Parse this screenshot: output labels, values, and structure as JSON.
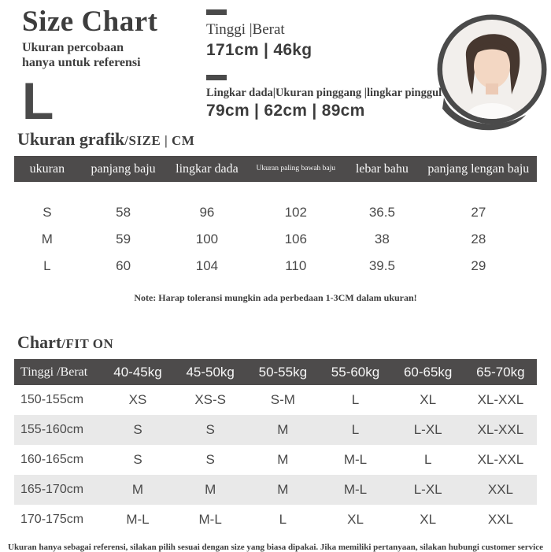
{
  "header": {
    "title": "Size Chart",
    "subtitle_line1": "Ukuran percobaan",
    "subtitle_line2": "hanya untuk referensi",
    "size_letter": "L",
    "stats": [
      {
        "label": "Tinggi |Berat",
        "value": "171cm | 46kg"
      },
      {
        "label": "Lingkar dada|Ukuran pinggang |lingkar pinggul",
        "value": "79cm | 62cm | 89cm"
      }
    ]
  },
  "sections": {
    "size": {
      "title": "Ukuran grafik",
      "suffix": "/SIZE | CM"
    },
    "fit": {
      "title": "Chart",
      "suffix": "/FIT ON"
    }
  },
  "size_table": {
    "columns": [
      "ukuran",
      "panjang baju",
      "lingkar dada",
      "Ukuran paling bawah baju",
      "lebar bahu",
      "panjang lengan baju"
    ],
    "rows": [
      [
        "S",
        "58",
        "96",
        "102",
        "36.5",
        "27"
      ],
      [
        "M",
        "59",
        "100",
        "106",
        "38",
        "28"
      ],
      [
        "L",
        "60",
        "104",
        "110",
        "39.5",
        "29"
      ]
    ]
  },
  "note": "Note: Harap toleransi mungkin ada perbedaan 1-3CM dalam ukuran!",
  "fit_table": {
    "columns": [
      "Tinggi /Berat",
      "40-45kg",
      "45-50kg",
      "50-55kg",
      "55-60kg",
      "60-65kg",
      "65-70kg"
    ],
    "rows": [
      [
        "150-155cm",
        "XS",
        "XS-S",
        "S-M",
        "L",
        "XL",
        "XL-XXL"
      ],
      [
        "155-160cm",
        "S",
        "S",
        "M",
        "L",
        "L-XL",
        "XL-XXL"
      ],
      [
        "160-165cm",
        "S",
        "S",
        "M",
        "M-L",
        "L",
        "XL-XXL"
      ],
      [
        "165-170cm",
        "M",
        "M",
        "M",
        "M-L",
        "L-XL",
        "XXL"
      ],
      [
        "170-175cm",
        "M-L",
        "M-L",
        "L",
        "XL",
        "XL",
        "XXL"
      ]
    ]
  },
  "footer": "Ukuran hanya sebagai referensi, silakan pilih sesuai dengan size yang biasa dipakai. Jika memiliki pertanyaan, silakan hubungi customer service",
  "colors": {
    "table_header_bg": "#4d4b4b",
    "zebra_row_bg": "#e9e9e9",
    "text_dark": "#3d3d3d",
    "avatar_ring": "#4a4a4a"
  }
}
